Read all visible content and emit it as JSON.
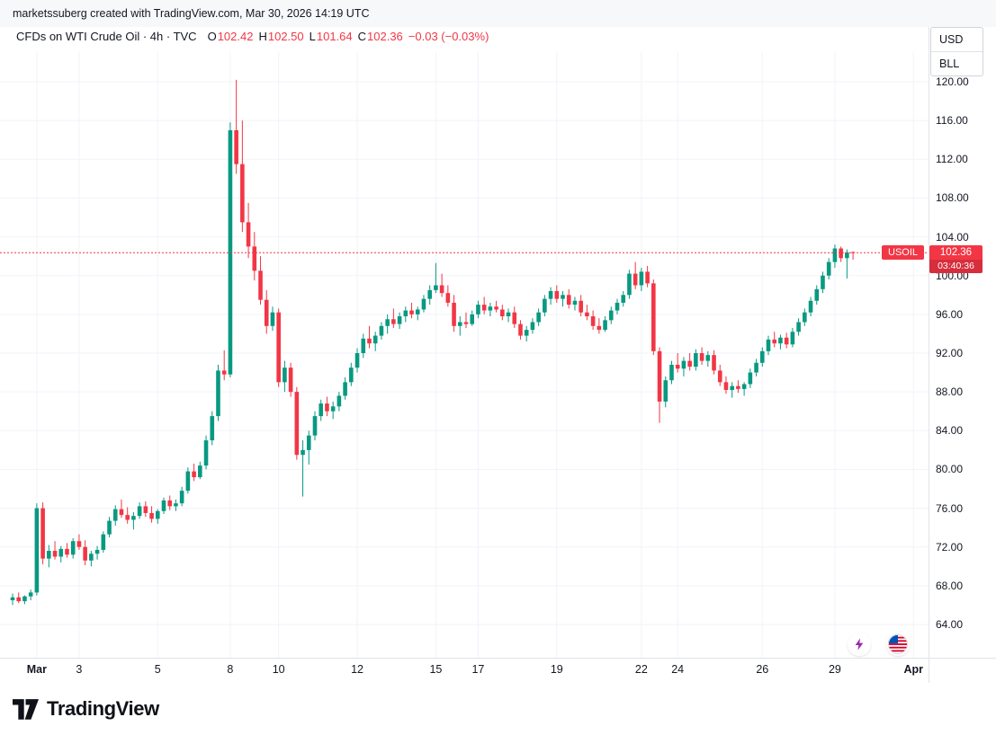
{
  "attribution": "marketssuberg created with TradingView.com, Mar 30, 2026 14:19 UTC",
  "header": {
    "symbol_title": "CFDs on WTI Crude Oil · 4h · TVC",
    "labels": {
      "o": "O",
      "h": "H",
      "l": "L",
      "c": "C"
    },
    "ohlc": {
      "o": "102.42",
      "h": "102.50",
      "l": "101.64",
      "c": "102.36"
    },
    "change": "−0.03 (−0.03%)"
  },
  "axis_toggles": {
    "currency": "USD",
    "unit": "BLL"
  },
  "price_label": {
    "symbol": "USOIL",
    "price": "102.36",
    "countdown": "03:40:36"
  },
  "logo_text": "TradingView",
  "colors": {
    "up": "#089981",
    "down": "#F23645",
    "grid": "#f0f3fa",
    "axis_line": "#e0e3eb",
    "accent_red": "#F23645"
  },
  "chart_data": {
    "type": "candlestick",
    "title": "CFDs on WTI Crude Oil, 4h, TVC",
    "symbol": "USOIL",
    "timeframe": "4h",
    "last_price": 102.36,
    "ylim": [
      62,
      122
    ],
    "y_ticks": [
      120,
      116,
      112,
      108,
      104,
      100,
      96,
      92,
      88,
      84,
      80,
      76,
      72,
      68,
      64
    ],
    "x_ticks": [
      {
        "label": "Mar",
        "i": 4,
        "major": true
      },
      {
        "label": "3",
        "i": 11
      },
      {
        "label": "5",
        "i": 24
      },
      {
        "label": "8",
        "i": 36
      },
      {
        "label": "10",
        "i": 44
      },
      {
        "label": "12",
        "i": 57
      },
      {
        "label": "15",
        "i": 70
      },
      {
        "label": "17",
        "i": 77
      },
      {
        "label": "19",
        "i": 90
      },
      {
        "label": "22",
        "i": 104
      },
      {
        "label": "24",
        "i": 110
      },
      {
        "label": "26",
        "i": 124
      },
      {
        "label": "29",
        "i": 136
      },
      {
        "label": "Apr",
        "i": 149,
        "major": true
      }
    ],
    "candles": [
      [
        66.5,
        67.2,
        66.0,
        66.8
      ],
      [
        66.8,
        67.3,
        66.2,
        66.4
      ],
      [
        66.4,
        67.0,
        66.1,
        66.9
      ],
      [
        66.9,
        67.6,
        66.5,
        67.3
      ],
      [
        67.3,
        76.5,
        67.0,
        76.0
      ],
      [
        76.0,
        76.6,
        70.2,
        70.8
      ],
      [
        70.8,
        72.2,
        69.9,
        71.6
      ],
      [
        71.6,
        72.6,
        70.7,
        71.0
      ],
      [
        71.0,
        72.1,
        70.4,
        71.8
      ],
      [
        71.8,
        72.4,
        70.9,
        71.2
      ],
      [
        71.2,
        72.9,
        70.8,
        72.6
      ],
      [
        72.6,
        73.3,
        71.7,
        72.0
      ],
      [
        72.0,
        72.7,
        70.1,
        70.6
      ],
      [
        70.6,
        71.6,
        70.0,
        71.3
      ],
      [
        71.3,
        72.1,
        70.7,
        71.7
      ],
      [
        71.7,
        73.6,
        71.4,
        73.3
      ],
      [
        73.3,
        75.1,
        73.0,
        74.7
      ],
      [
        74.7,
        76.3,
        74.2,
        75.9
      ],
      [
        75.9,
        76.9,
        75.0,
        75.3
      ],
      [
        75.3,
        76.1,
        74.4,
        74.8
      ],
      [
        74.8,
        75.6,
        73.8,
        75.2
      ],
      [
        75.2,
        76.6,
        74.9,
        76.2
      ],
      [
        76.2,
        76.7,
        75.1,
        75.5
      ],
      [
        75.5,
        76.2,
        74.5,
        74.9
      ],
      [
        74.9,
        75.9,
        74.4,
        75.7
      ],
      [
        75.7,
        77.1,
        75.4,
        76.8
      ],
      [
        76.8,
        77.3,
        75.8,
        76.2
      ],
      [
        76.2,
        76.9,
        75.7,
        76.5
      ],
      [
        76.5,
        78.2,
        76.2,
        77.8
      ],
      [
        77.8,
        80.2,
        77.5,
        79.8
      ],
      [
        79.8,
        80.6,
        78.8,
        79.2
      ],
      [
        79.2,
        80.8,
        79.0,
        80.4
      ],
      [
        80.4,
        83.5,
        80.0,
        83.0
      ],
      [
        83.0,
        86.0,
        82.5,
        85.5
      ],
      [
        85.5,
        90.8,
        85.0,
        90.2
      ],
      [
        90.2,
        92.3,
        89.2,
        89.8
      ],
      [
        89.8,
        115.8,
        89.5,
        115.0
      ],
      [
        115.0,
        120.2,
        110.5,
        111.5
      ],
      [
        111.5,
        116.0,
        104.5,
        105.5
      ],
      [
        105.5,
        107.5,
        101.8,
        103.0
      ],
      [
        103.0,
        104.5,
        99.5,
        100.5
      ],
      [
        100.5,
        102.0,
        97.0,
        97.5
      ],
      [
        97.5,
        98.5,
        94.0,
        94.8
      ],
      [
        94.8,
        96.8,
        94.3,
        96.2
      ],
      [
        96.2,
        96.6,
        88.5,
        89.0
      ],
      [
        89.0,
        91.2,
        88.0,
        90.5
      ],
      [
        90.5,
        91.0,
        87.5,
        88.0
      ],
      [
        88.0,
        88.5,
        81.0,
        81.5
      ],
      [
        81.5,
        83.0,
        77.2,
        82.0
      ],
      [
        82.0,
        84.0,
        80.5,
        83.5
      ],
      [
        83.5,
        86.0,
        83.0,
        85.5
      ],
      [
        85.5,
        87.2,
        85.0,
        86.8
      ],
      [
        86.8,
        87.5,
        85.5,
        86.0
      ],
      [
        86.0,
        87.0,
        85.2,
        86.5
      ],
      [
        86.5,
        88.0,
        86.0,
        87.6
      ],
      [
        87.6,
        89.5,
        87.2,
        89.0
      ],
      [
        89.0,
        91.0,
        88.6,
        90.5
      ],
      [
        90.5,
        92.5,
        90.0,
        92.0
      ],
      [
        92.0,
        94.0,
        91.5,
        93.5
      ],
      [
        93.5,
        94.8,
        92.5,
        93.0
      ],
      [
        93.0,
        94.2,
        92.2,
        93.8
      ],
      [
        93.8,
        95.2,
        93.4,
        94.8
      ],
      [
        94.8,
        96.0,
        94.0,
        95.5
      ],
      [
        95.5,
        96.6,
        94.6,
        95.0
      ],
      [
        95.0,
        96.2,
        94.5,
        95.8
      ],
      [
        95.8,
        96.8,
        95.2,
        96.4
      ],
      [
        96.4,
        97.2,
        95.6,
        96.0
      ],
      [
        96.0,
        96.8,
        95.4,
        96.5
      ],
      [
        96.5,
        98.0,
        96.2,
        97.6
      ],
      [
        97.6,
        99.0,
        97.0,
        98.5
      ],
      [
        98.5,
        101.3,
        98.2,
        99.0
      ],
      [
        99.0,
        100.2,
        97.8,
        98.2
      ],
      [
        98.2,
        99.0,
        96.8,
        97.2
      ],
      [
        97.2,
        98.0,
        94.2,
        94.8
      ],
      [
        94.8,
        95.8,
        93.8,
        95.2
      ],
      [
        95.2,
        96.2,
        94.6,
        95.0
      ],
      [
        95.0,
        96.4,
        94.8,
        96.0
      ],
      [
        96.0,
        97.4,
        95.6,
        97.0
      ],
      [
        97.0,
        97.8,
        96.0,
        96.4
      ],
      [
        96.4,
        97.2,
        95.8,
        96.8
      ],
      [
        96.8,
        97.4,
        96.2,
        96.5
      ],
      [
        96.5,
        97.0,
        95.4,
        95.8
      ],
      [
        95.8,
        96.6,
        95.2,
        96.2
      ],
      [
        96.2,
        96.8,
        94.6,
        95.0
      ],
      [
        95.0,
        95.4,
        93.4,
        93.8
      ],
      [
        93.8,
        94.8,
        93.2,
        94.4
      ],
      [
        94.4,
        95.6,
        94.0,
        95.2
      ],
      [
        95.2,
        96.6,
        94.8,
        96.2
      ],
      [
        96.2,
        98.0,
        95.8,
        97.6
      ],
      [
        97.6,
        98.8,
        97.0,
        98.4
      ],
      [
        98.4,
        99.0,
        97.2,
        97.6
      ],
      [
        97.6,
        98.4,
        96.8,
        98.0
      ],
      [
        98.0,
        98.6,
        96.6,
        97.0
      ],
      [
        97.0,
        97.8,
        96.4,
        97.4
      ],
      [
        97.4,
        98.0,
        95.8,
        96.2
      ],
      [
        96.2,
        97.0,
        95.4,
        95.8
      ],
      [
        95.8,
        96.4,
        94.4,
        94.8
      ],
      [
        94.8,
        95.6,
        94.0,
        94.4
      ],
      [
        94.4,
        95.8,
        94.2,
        95.4
      ],
      [
        95.4,
        96.8,
        95.0,
        96.4
      ],
      [
        96.4,
        97.6,
        96.0,
        97.2
      ],
      [
        97.2,
        98.4,
        96.8,
        98.0
      ],
      [
        98.0,
        100.6,
        97.6,
        100.2
      ],
      [
        100.2,
        101.4,
        98.6,
        99.0
      ],
      [
        99.0,
        100.8,
        98.4,
        100.4
      ],
      [
        100.4,
        101.0,
        98.8,
        99.2
      ],
      [
        99.2,
        99.6,
        91.8,
        92.2
      ],
      [
        92.2,
        92.6,
        84.8,
        87.0
      ],
      [
        87.0,
        89.6,
        86.4,
        89.2
      ],
      [
        89.2,
        91.2,
        88.8,
        90.8
      ],
      [
        90.8,
        92.0,
        90.0,
        90.4
      ],
      [
        90.4,
        91.6,
        89.6,
        91.2
      ],
      [
        91.2,
        92.0,
        90.2,
        90.6
      ],
      [
        90.6,
        92.4,
        90.2,
        92.0
      ],
      [
        92.0,
        92.6,
        90.8,
        91.2
      ],
      [
        91.2,
        92.2,
        90.6,
        91.8
      ],
      [
        91.8,
        92.3,
        89.8,
        90.2
      ],
      [
        90.2,
        90.8,
        88.6,
        89.0
      ],
      [
        89.0,
        89.6,
        87.8,
        88.2
      ],
      [
        88.2,
        89.0,
        87.4,
        88.6
      ],
      [
        88.6,
        89.2,
        87.9,
        88.3
      ],
      [
        88.3,
        89.0,
        87.6,
        88.8
      ],
      [
        88.8,
        90.4,
        88.4,
        90.0
      ],
      [
        90.0,
        91.4,
        89.6,
        91.0
      ],
      [
        91.0,
        92.6,
        90.6,
        92.2
      ],
      [
        92.2,
        93.8,
        91.8,
        93.4
      ],
      [
        93.4,
        94.2,
        92.6,
        93.0
      ],
      [
        93.0,
        93.9,
        92.4,
        93.6
      ],
      [
        93.6,
        94.1,
        92.5,
        92.9
      ],
      [
        92.9,
        94.6,
        92.6,
        94.2
      ],
      [
        94.2,
        95.6,
        93.8,
        95.2
      ],
      [
        95.2,
        96.6,
        94.8,
        96.2
      ],
      [
        96.2,
        97.8,
        95.8,
        97.4
      ],
      [
        97.4,
        99.0,
        97.0,
        98.6
      ],
      [
        98.6,
        100.4,
        98.2,
        100.0
      ],
      [
        100.0,
        101.8,
        99.6,
        101.4
      ],
      [
        101.4,
        103.2,
        100.8,
        102.8
      ],
      [
        102.8,
        103.0,
        101.4,
        101.8
      ],
      [
        101.8,
        102.7,
        99.7,
        102.4
      ],
      [
        102.42,
        102.5,
        101.64,
        102.36
      ]
    ]
  }
}
